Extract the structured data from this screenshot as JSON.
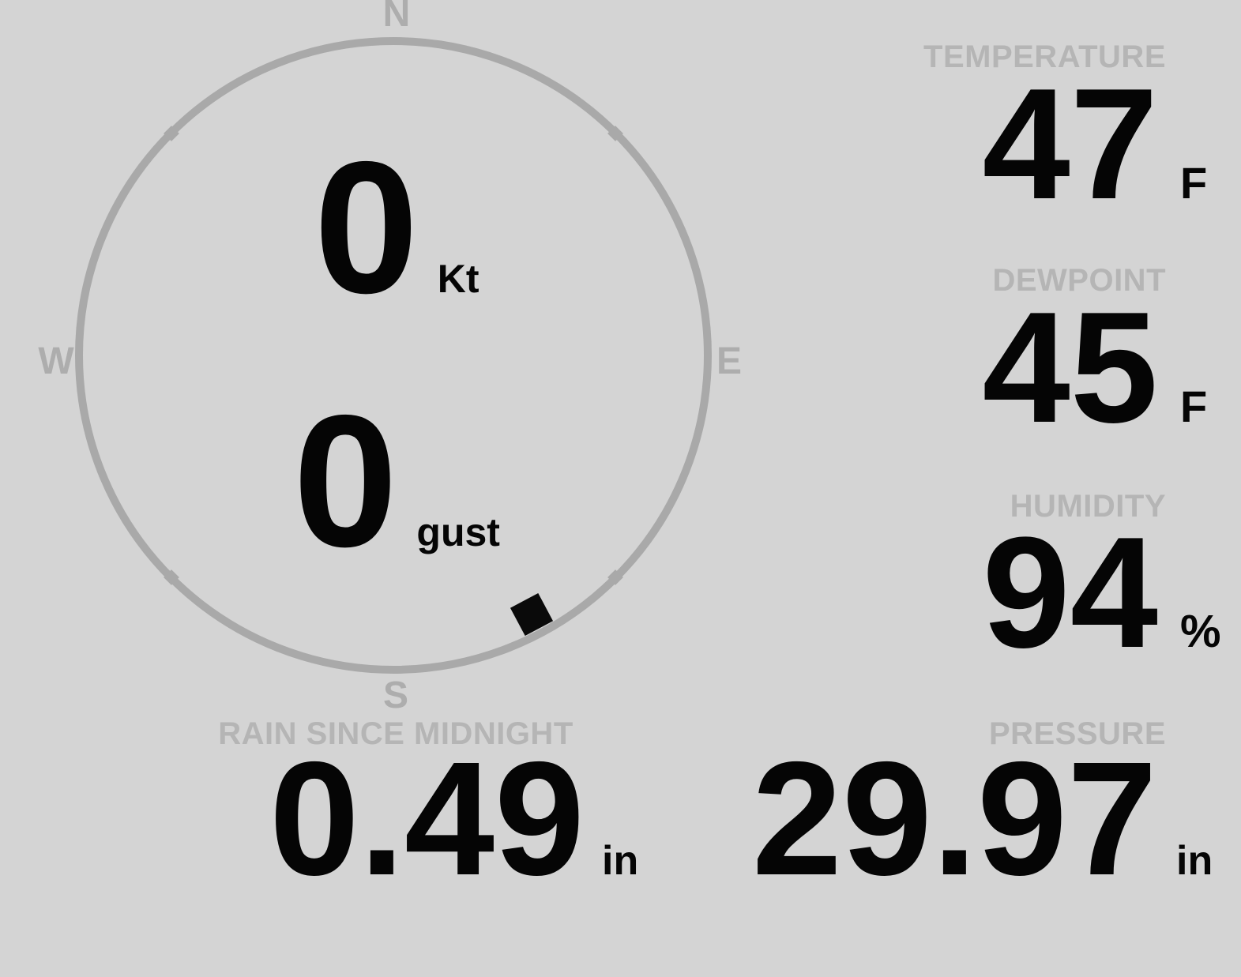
{
  "theme": {
    "background": "#d4d4d4",
    "ring_color": "#a9a9a9",
    "cardinal_color": "#adadad",
    "label_color": "#b5b5b5",
    "value_color": "#050505"
  },
  "compass": {
    "cardinals": {
      "north": "N",
      "east": "E",
      "south": "S",
      "west": "W"
    },
    "wind_speed": {
      "value": "0",
      "unit": "Kt"
    },
    "wind_gust": {
      "value": "0",
      "unit": "gust"
    },
    "marker": {
      "bearing_deg": 152
    }
  },
  "metrics": {
    "temperature": {
      "label": "TEMPERATURE",
      "value": "47",
      "unit": "F"
    },
    "dewpoint": {
      "label": "DEWPOINT",
      "value": "45",
      "unit": "F"
    },
    "humidity": {
      "label": "HUMIDITY",
      "value": "94",
      "unit": "%"
    },
    "rain_since_midnight": {
      "label": "RAIN SINCE MIDNIGHT",
      "value": "0.49",
      "unit": "in"
    },
    "pressure": {
      "label": "PRESSURE",
      "value": "29.97",
      "unit": "in"
    }
  }
}
